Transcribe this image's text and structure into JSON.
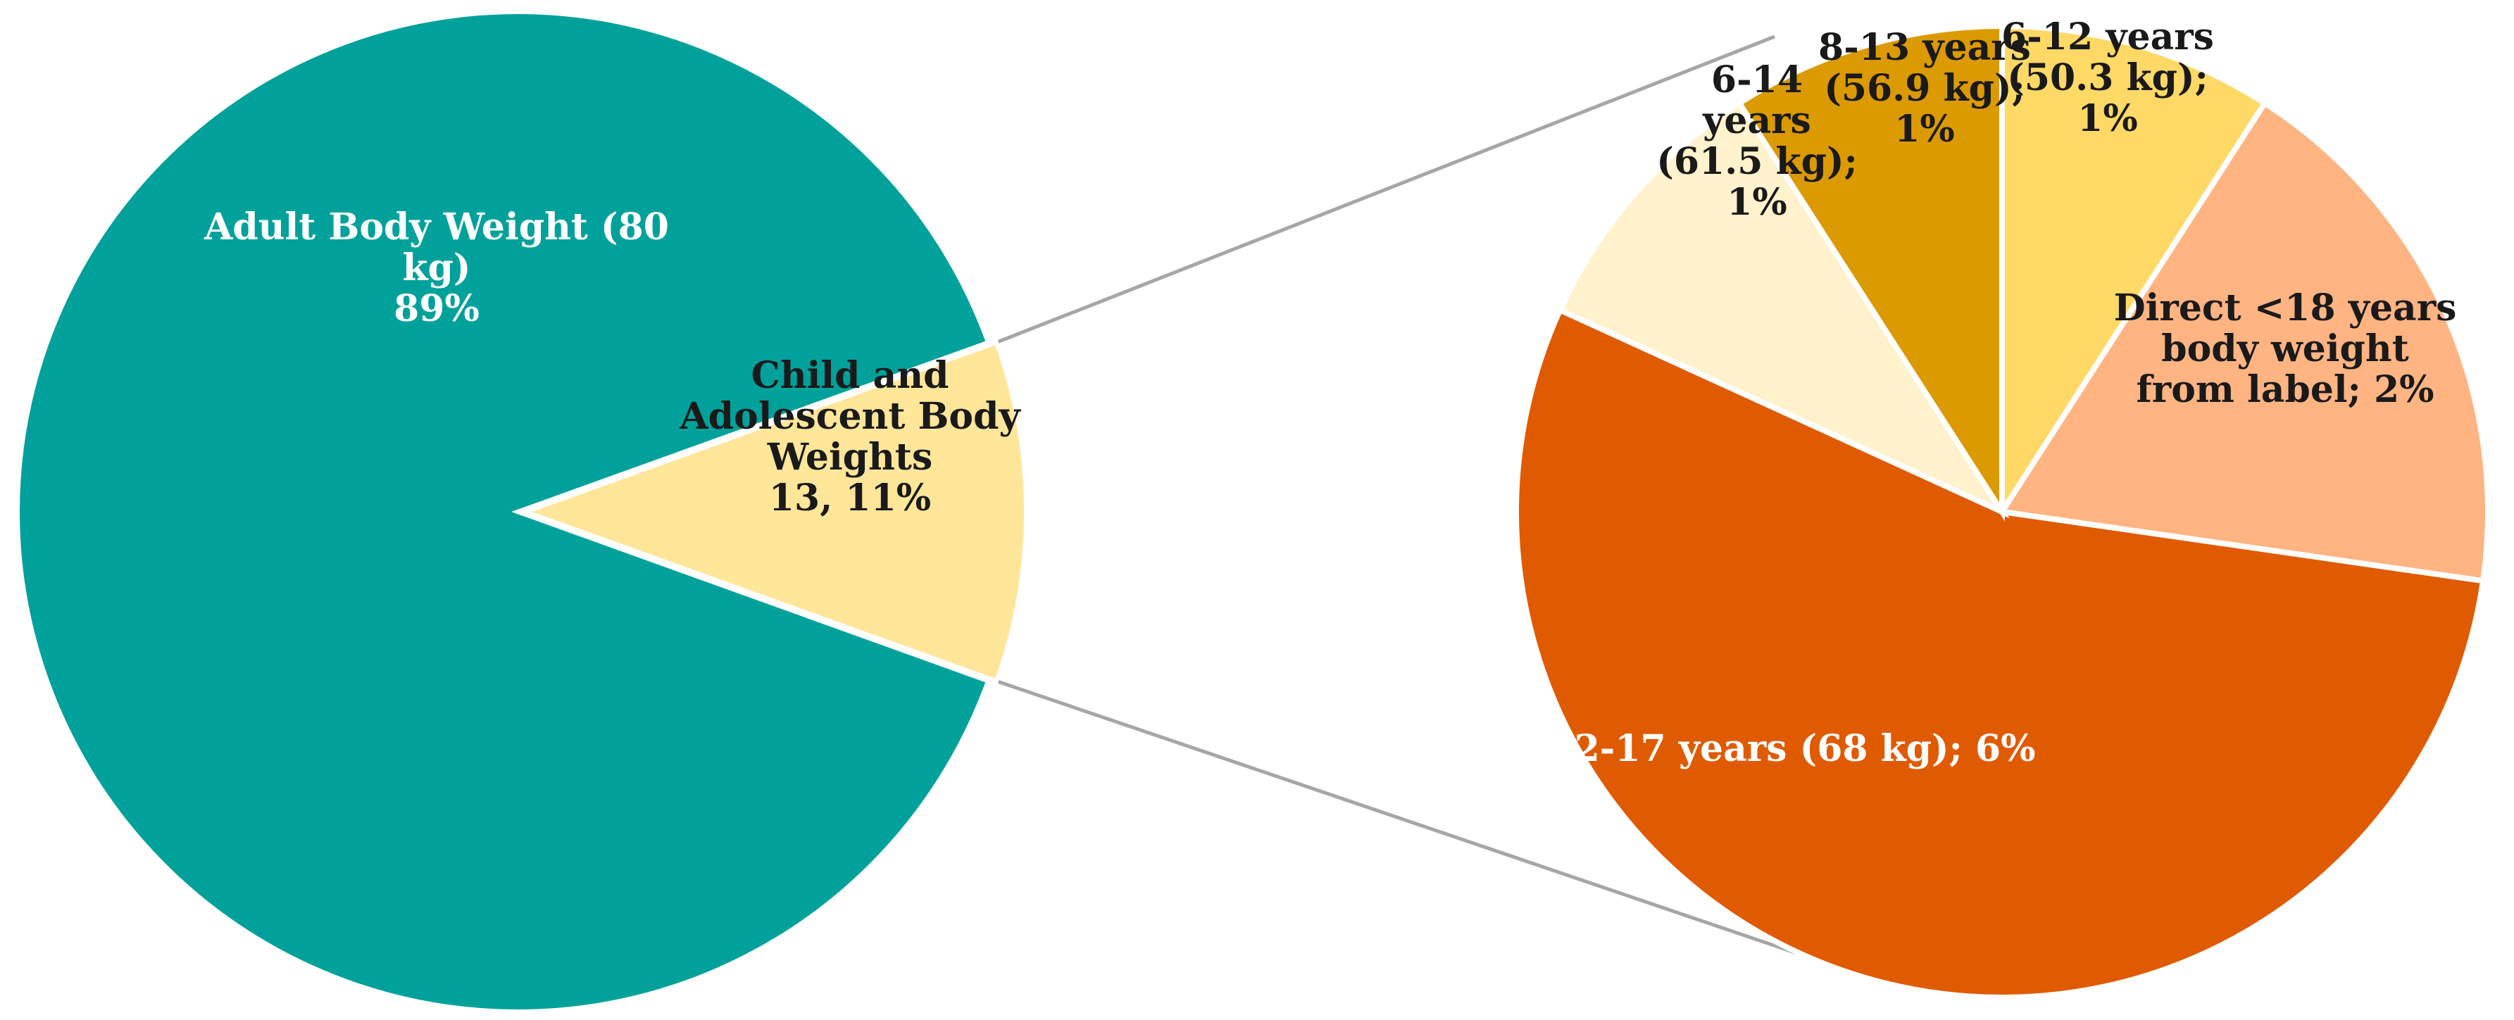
{
  "chart_data": [
    {
      "type": "pie",
      "title": "",
      "slices": [
        {
          "id": "adult",
          "label_lines": [
            "Adult Body Weight (80",
            "kg)",
            "89%"
          ],
          "value": 89,
          "color": "#00A19B",
          "label_color": "#ffffff"
        },
        {
          "id": "child",
          "label_lines": [
            "Child and",
            "Adolescent Body",
            "Weights",
            "13, 11%"
          ],
          "value": 11,
          "color": "#FFE699",
          "label_color": "#1a1a1a"
        }
      ]
    },
    {
      "type": "pie",
      "title": "",
      "breakdown_of": "child",
      "slices": [
        {
          "id": "6-12",
          "label_lines": [
            "6-12 years",
            "(50.3 kg);",
            "1%"
          ],
          "value": 1,
          "color": "#FFD966",
          "label_color": "#1a1a1a"
        },
        {
          "id": "direct",
          "label_lines": [
            "Direct <18 years",
            "body weight",
            "from label; 2%"
          ],
          "value": 2,
          "color": "#FFB482",
          "label_color": "#1a1a1a"
        },
        {
          "id": "12-17",
          "label_lines": [
            "12-17 years (68 kg); 6%"
          ],
          "value": 6,
          "color": "#E05A00",
          "label_color": "#ffffff"
        },
        {
          "id": "6-14",
          "label_lines": [
            "6-14",
            "years",
            "(61.5 kg);",
            "1%"
          ],
          "value": 1,
          "color": "#FFF2CC",
          "label_color": "#1a1a1a"
        },
        {
          "id": "8-13",
          "label_lines": [
            "8-13 years",
            "(56.9 kg);",
            "1%"
          ],
          "value": 1,
          "color": "#DB9A00",
          "label_color": "#1a1a1a"
        }
      ]
    }
  ],
  "connector_color": "#A6A6A6"
}
